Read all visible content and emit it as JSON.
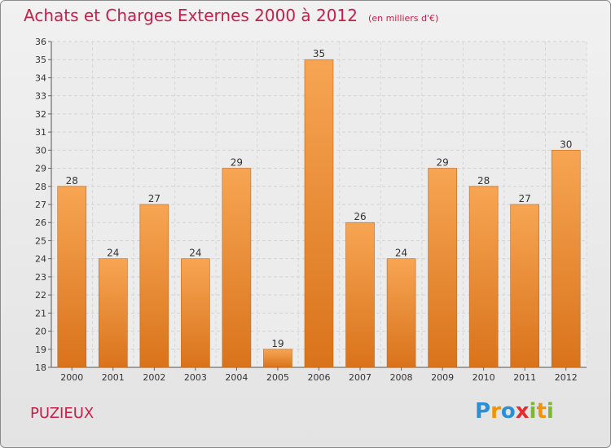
{
  "header": {
    "title": "Achats et Charges Externes 2000 à 2012",
    "unit": "(en milliers d'€)"
  },
  "footer": {
    "commune": "PUZIEUX",
    "logo": {
      "letters": [
        "P",
        "r",
        "o",
        "x",
        "i",
        "t",
        "i"
      ],
      "colors": [
        "#2c8fd6",
        "#f29400",
        "#2c8fd6",
        "#e52d2d",
        "#7cb82f",
        "#f29400",
        "#7cb82f"
      ]
    }
  },
  "colors": {
    "bar_top": "#f7a553",
    "bar_bottom": "#d9731b",
    "title": "#c81e4a"
  },
  "chart_data": {
    "type": "bar",
    "categories": [
      "2000",
      "2001",
      "2002",
      "2003",
      "2004",
      "2005",
      "2006",
      "2007",
      "2008",
      "2009",
      "2010",
      "2011",
      "2012"
    ],
    "values": [
      28,
      24,
      27,
      24,
      29,
      19,
      35,
      26,
      24,
      29,
      28,
      27,
      30
    ],
    "ylim": [
      18,
      36
    ],
    "yticks": [
      18,
      19,
      20,
      21,
      22,
      23,
      24,
      25,
      26,
      27,
      28,
      29,
      30,
      31,
      32,
      33,
      34,
      35,
      36
    ],
    "grid": true
  }
}
